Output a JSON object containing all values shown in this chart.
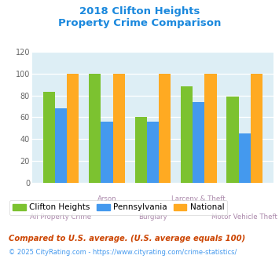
{
  "title_line1": "2018 Clifton Heights",
  "title_line2": "Property Crime Comparison",
  "categories": [
    "All Property Crime",
    "Arson",
    "Burglary",
    "Larceny & Theft",
    "Motor Vehicle Theft"
  ],
  "clifton_heights": [
    83,
    100,
    60,
    88,
    79
  ],
  "pennsylvania": [
    68,
    56,
    56,
    74,
    45
  ],
  "national": [
    100,
    100,
    100,
    100,
    100
  ],
  "color_clifton": "#7cc230",
  "color_pennsylvania": "#4499ee",
  "color_national": "#ffaa22",
  "ylim": [
    0,
    120
  ],
  "yticks": [
    0,
    20,
    40,
    60,
    80,
    100,
    120
  ],
  "title_color": "#1a88dd",
  "xlabel_color": "#aa88aa",
  "bg_color": "#ddeef5",
  "legend_labels": [
    "Clifton Heights",
    "Pennsylvania",
    "National"
  ],
  "footnote1": "Compared to U.S. average. (U.S. average equals 100)",
  "footnote2": "© 2025 CityRating.com - https://www.cityrating.com/crime-statistics/",
  "footnote1_color": "#cc4400",
  "footnote2_color": "#4499ee"
}
